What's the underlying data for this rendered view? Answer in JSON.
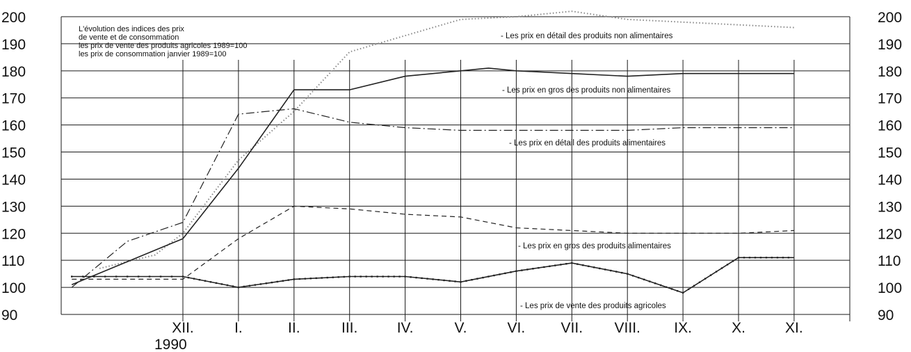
{
  "chart_data": {
    "type": "line",
    "title_lines": [
      "L'évolution des indices des prix",
      "de vente et de consommation",
      "les prix de vente des produits agricoles 1989=100",
      "les prix de consommation janvier 1989=100"
    ],
    "x_categories": [
      "XII.",
      "I.",
      "II.",
      "III.",
      "IV.",
      "V.",
      "VI.",
      "VII.",
      "VIII.",
      "IX.",
      "X.",
      "XI."
    ],
    "x_year_label": "1990",
    "ylim": [
      90,
      200
    ],
    "yticks": [
      90,
      100,
      110,
      120,
      130,
      140,
      150,
      160,
      170,
      180,
      190,
      200
    ],
    "grid": true,
    "series": [
      {
        "name": "- Les prix en détail des produits non alimentaires",
        "style": "dotted",
        "color": "#888888",
        "x": [
          -1.5,
          -0.5,
          0,
          1,
          2,
          3,
          4,
          5,
          6,
          7,
          8,
          9,
          10,
          11
        ],
        "values": [
          107,
          112,
          120,
          147,
          165,
          187,
          193,
          199,
          200,
          202,
          199,
          198,
          197,
          196
        ]
      },
      {
        "name": "- Les prix en gros des produits non alimentaires",
        "style": "solid",
        "color": "#222222",
        "x": [
          -2,
          0,
          1,
          2,
          3,
          4,
          5,
          5.5,
          6,
          7,
          8,
          9,
          10,
          11
        ],
        "values": [
          101,
          118,
          144,
          173,
          173,
          178,
          180,
          181,
          180,
          179,
          178,
          179,
          179,
          179
        ]
      },
      {
        "name": "- Les prix en détail des produits alimentaires",
        "style": "dashdot",
        "color": "#222222",
        "x": [
          -2,
          -1,
          0,
          1,
          2,
          3,
          4,
          5,
          6,
          7,
          8,
          9,
          10,
          11
        ],
        "values": [
          100,
          117,
          124,
          164,
          166,
          161,
          159,
          158,
          158,
          158,
          158,
          159,
          159,
          159
        ]
      },
      {
        "name": "- Les prix en gros des produits alimentaires",
        "style": "dashed",
        "color": "#222222",
        "x": [
          -2,
          0,
          1,
          2,
          3,
          4,
          5,
          6,
          7,
          8,
          9,
          10,
          11
        ],
        "values": [
          103,
          103,
          118,
          130,
          129,
          127,
          126,
          122,
          121,
          120,
          120,
          120,
          121
        ]
      },
      {
        "name": "- Les prix de vente des produits agricoles",
        "style": "marked",
        "color": "#222222",
        "x": [
          -2,
          0,
          1,
          2,
          3,
          4,
          5,
          6,
          7,
          8,
          9,
          10,
          11
        ],
        "values": [
          104,
          104,
          100,
          103,
          104,
          104,
          102,
          106,
          109,
          105,
          98,
          111,
          111
        ]
      }
    ]
  }
}
